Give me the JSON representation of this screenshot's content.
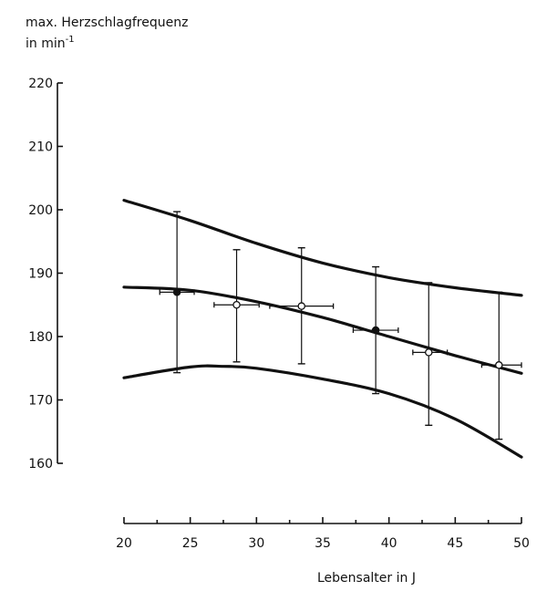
{
  "chart_data": {
    "type": "scatter",
    "ylabel_line1": "max. Herzschlagfrequenz",
    "ylabel_line2": "in min",
    "ylabel_exponent": "-1",
    "xlabel": "Lebensalter in J",
    "xlim": [
      20,
      50
    ],
    "ylim": [
      160,
      220
    ],
    "x_ticks": [
      20,
      25,
      30,
      35,
      40,
      45,
      50
    ],
    "y_ticks": [
      160,
      170,
      180,
      190,
      200,
      210,
      220
    ],
    "points": [
      {
        "x": 24.0,
        "y": 187.0,
        "marker": "filled",
        "y_low": 174.3,
        "y_high": 199.7,
        "x_low": 22.7,
        "x_high": 25.3
      },
      {
        "x": 28.5,
        "y": 185.0,
        "marker": "open",
        "y_low": 176.0,
        "y_high": 193.7,
        "x_low": 26.8,
        "x_high": 30.2
      },
      {
        "x": 33.4,
        "y": 184.8,
        "marker": "open",
        "y_low": 175.7,
        "y_high": 194.0,
        "x_low": 31.0,
        "x_high": 35.8
      },
      {
        "x": 39.0,
        "y": 181.0,
        "marker": "filled",
        "y_low": 171.0,
        "y_high": 191.0,
        "x_low": 37.3,
        "x_high": 40.7
      },
      {
        "x": 43.0,
        "y": 177.5,
        "marker": "open",
        "y_low": 166.0,
        "y_high": 188.5,
        "x_low": 41.8,
        "x_high": 44.4
      },
      {
        "x": 48.3,
        "y": 175.5,
        "marker": "open",
        "y_low": 163.8,
        "y_high": 187.0,
        "x_low": 47.0,
        "x_high": 50.0
      }
    ],
    "curves": [
      {
        "x": [
          20,
          25,
          30,
          35,
          40,
          45,
          50
        ],
        "y": [
          201.5,
          198.3,
          194.7,
          191.6,
          189.3,
          187.7,
          186.5
        ]
      },
      {
        "x": [
          20,
          25,
          30,
          35,
          40,
          45,
          50
        ],
        "y": [
          187.8,
          187.3,
          185.5,
          183.0,
          180.0,
          177.0,
          174.2
        ]
      },
      {
        "x": [
          20,
          25,
          27.5,
          30,
          35,
          40,
          45,
          50
        ],
        "y": [
          173.5,
          175.2,
          175.3,
          175.0,
          173.3,
          171.0,
          167.0,
          161.0
        ]
      }
    ],
    "grid": false
  }
}
